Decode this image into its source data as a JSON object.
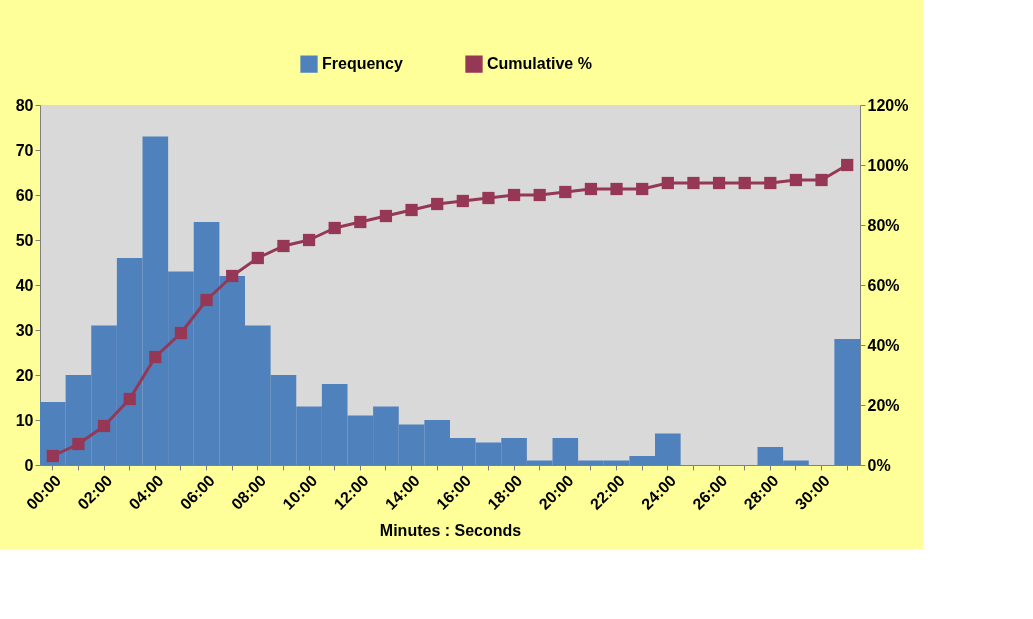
{
  "chart_data": {
    "type": "bar",
    "xlabel": "Minutes : Seconds",
    "legend": "top",
    "grid": false,
    "categories": [
      "00:00",
      null,
      "02:00",
      null,
      "04:00",
      null,
      "06:00",
      null,
      "08:00",
      null,
      "10:00",
      null,
      "12:00",
      null,
      "14:00",
      null,
      "16:00",
      null,
      "18:00",
      null,
      "20:00",
      null,
      "22:00",
      null,
      "24:00",
      null,
      "26:00",
      null,
      "28:00",
      null,
      "30:00",
      null
    ],
    "ylim": [
      0,
      80
    ],
    "yticks": [
      0,
      10,
      20,
      30,
      40,
      50,
      60,
      70,
      80
    ],
    "y2lim": [
      0,
      120
    ],
    "y2ticks": [
      {
        "value": 0,
        "label": "0%"
      },
      {
        "value": 20,
        "label": "20%"
      },
      {
        "value": 40,
        "label": "40%"
      },
      {
        "value": 60,
        "label": "60%"
      },
      {
        "value": 80,
        "label": "80%"
      },
      {
        "value": 100,
        "label": "100%"
      },
      {
        "value": 120,
        "label": "120%"
      }
    ],
    "series": [
      {
        "name": "Frequency",
        "color": "#4f81bd",
        "values": [
          14,
          20,
          31,
          46,
          73,
          43,
          54,
          42,
          31,
          20,
          13,
          18,
          11,
          13,
          9,
          10,
          6,
          5,
          6,
          1,
          6,
          1,
          1,
          2,
          7,
          0,
          0,
          0,
          4,
          1,
          0,
          28
        ]
      },
      {
        "name": "Cumulative %",
        "type": "line",
        "axis": "y2",
        "marker": "square",
        "color": "#953755",
        "values": [
          3,
          7,
          13,
          22,
          36,
          44,
          55,
          63,
          69,
          73,
          75,
          79,
          81,
          83,
          85,
          87,
          88,
          89,
          90,
          90,
          91,
          92,
          92,
          92,
          94,
          94,
          94,
          94,
          94,
          95,
          95,
          100
        ]
      }
    ]
  }
}
